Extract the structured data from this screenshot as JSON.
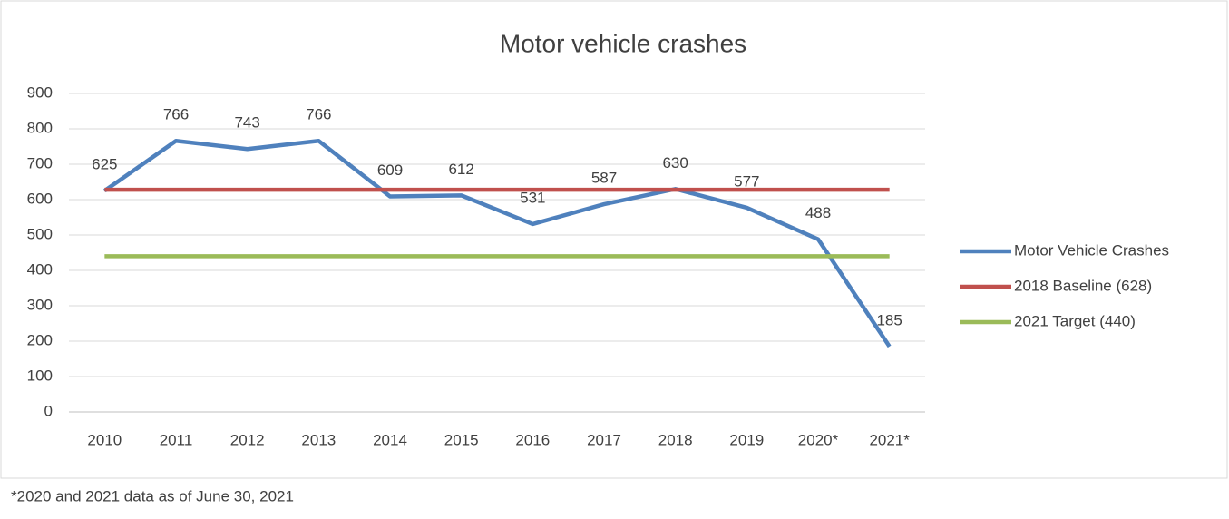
{
  "chart_data": {
    "type": "line",
    "title": "Motor vehicle crashes",
    "categories": [
      "2010",
      "2011",
      "2012",
      "2013",
      "2014",
      "2015",
      "2016",
      "2017",
      "2018",
      "2019",
      "2020*",
      "2021*"
    ],
    "series": [
      {
        "name": "Motor Vehicle Crashes",
        "color": "#4f81bd",
        "data_labels": true,
        "values": [
          625,
          766,
          743,
          766,
          609,
          612,
          531,
          587,
          630,
          577,
          488,
          185
        ]
      },
      {
        "name": "2018 Baseline (628)",
        "color": "#c0504d",
        "data_labels": false,
        "values": [
          628,
          628,
          628,
          628,
          628,
          628,
          628,
          628,
          628,
          628,
          628,
          628
        ]
      },
      {
        "name": "2021 Target (440)",
        "color": "#9bbb59",
        "data_labels": false,
        "values": [
          440,
          440,
          440,
          440,
          440,
          440,
          440,
          440,
          440,
          440,
          440,
          440
        ]
      }
    ],
    "ylim": [
      0,
      900
    ],
    "yticks": [
      0,
      100,
      200,
      300,
      400,
      500,
      600,
      700,
      800,
      900
    ],
    "grid": true,
    "legend": "right",
    "footnote": "*2020 and 2021 data as of June 30, 2021"
  }
}
